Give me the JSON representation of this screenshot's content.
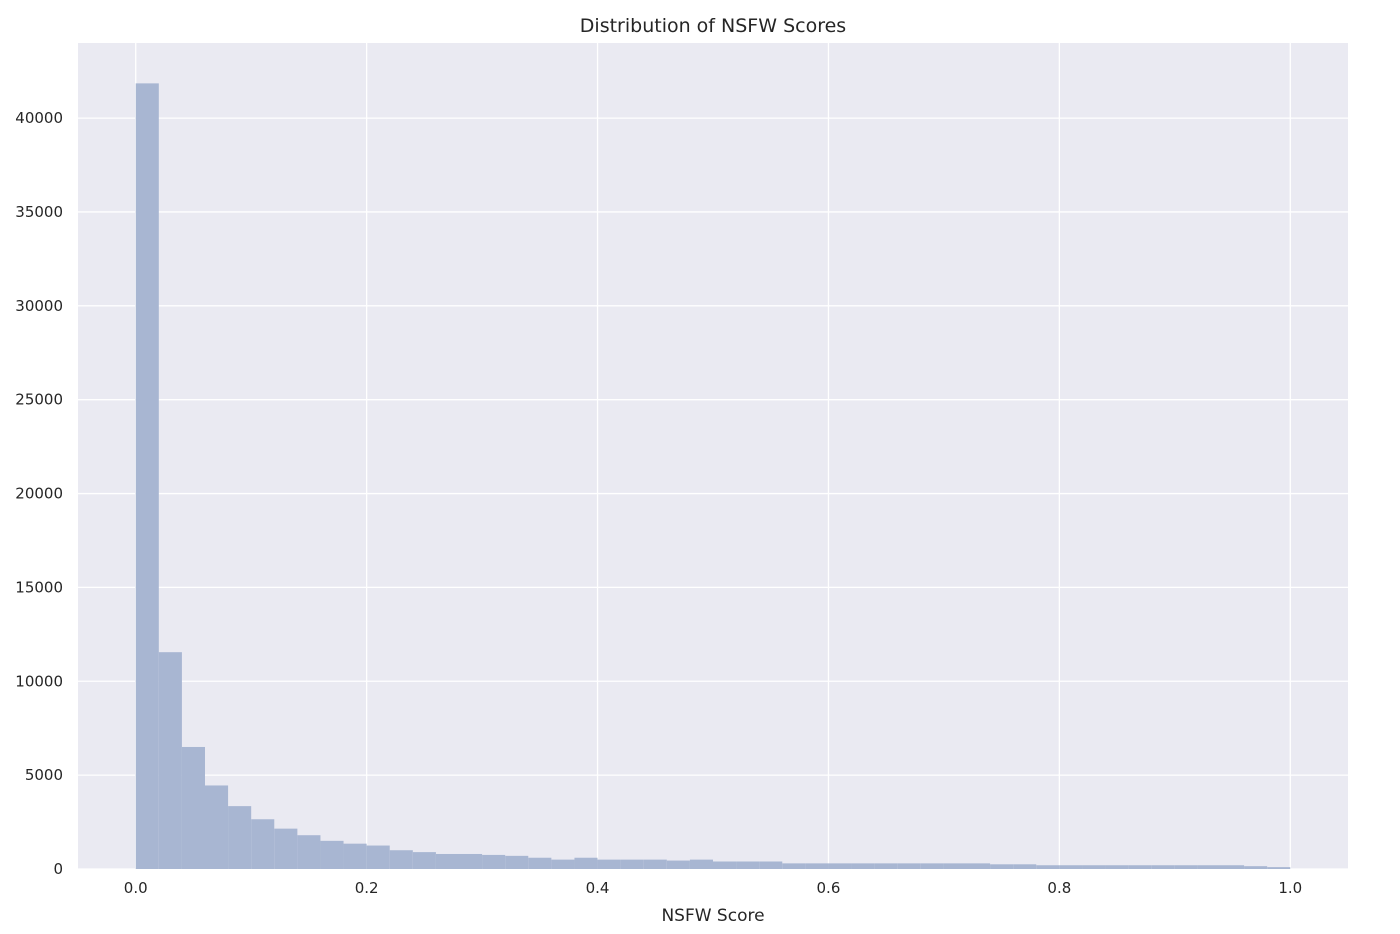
{
  "chart_data": {
    "type": "bar",
    "title": "Distribution of NSFW Scores",
    "xlabel": "NSFW Score",
    "ylabel": "",
    "xlim": [
      -0.05,
      1.05
    ],
    "ylim": [
      0,
      44000
    ],
    "xticks": [
      0.0,
      0.2,
      0.4,
      0.6,
      0.8,
      1.0
    ],
    "xtick_labels": [
      "0.0",
      "0.2",
      "0.4",
      "0.6",
      "0.8",
      "1.0"
    ],
    "yticks": [
      0,
      5000,
      10000,
      15000,
      20000,
      25000,
      30000,
      35000,
      40000
    ],
    "ytick_labels": [
      "0",
      "5000",
      "10000",
      "15000",
      "20000",
      "25000",
      "30000",
      "35000",
      "40000"
    ],
    "grid": true,
    "bin_width": 0.02,
    "bins_start": 0.0,
    "values": [
      41850,
      11550,
      6500,
      4450,
      3350,
      2650,
      2150,
      1800,
      1500,
      1350,
      1250,
      1000,
      900,
      800,
      800,
      750,
      700,
      600,
      500,
      600,
      500,
      500,
      500,
      450,
      500,
      400,
      400,
      400,
      300,
      300,
      300,
      300,
      300,
      300,
      300,
      300,
      300,
      250,
      250,
      200,
      200,
      200,
      200,
      200,
      200,
      200,
      200,
      200,
      150,
      100
    ],
    "colors": {
      "bar": "#a8b6d2",
      "background": "#eaeaf2",
      "grid": "#ffffff"
    }
  }
}
